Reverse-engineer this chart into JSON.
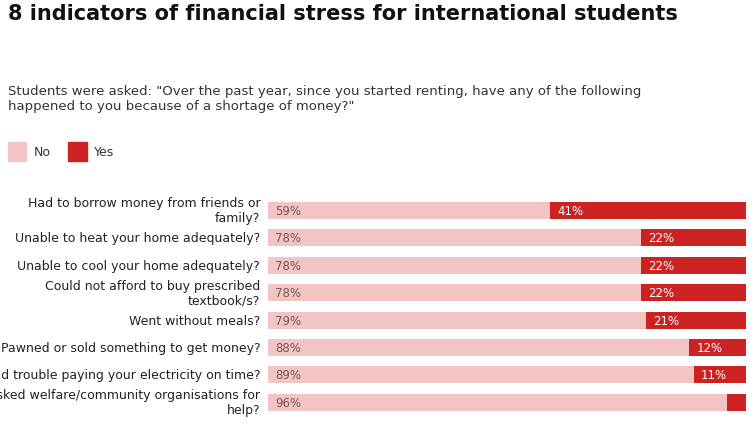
{
  "title": "8 indicators of financial stress for international students",
  "subtitle": "Students were asked: \"Over the past year, since you started renting, have any of the following\nhappened to you because of a shortage of money?\"",
  "categories": [
    "Had to borrow money from friends or\nfamily?",
    "Unable to heat your home adequately?",
    "Unable to cool your home adequately?",
    "Could not afford to buy prescribed\ntextbook/s?",
    "Went without meals?",
    "Pawned or sold something to get money?",
    "Had trouble paying your electricity on time?",
    "Asked welfare/community organisations for\nhelp?"
  ],
  "no_values": [
    59,
    78,
    78,
    78,
    79,
    88,
    89,
    96
  ],
  "yes_values": [
    41,
    22,
    22,
    22,
    21,
    12,
    11,
    4
  ],
  "no_color": "#f2c4c4",
  "yes_color": "#cc2222",
  "no_label": "No",
  "yes_label": "Yes",
  "no_text_color": "#7a5555",
  "yes_text_color": "#ffffff",
  "title_fontsize": 15,
  "subtitle_fontsize": 9.5,
  "label_fontsize": 9,
  "bar_fontsize": 8.5,
  "background_color": "#ffffff"
}
